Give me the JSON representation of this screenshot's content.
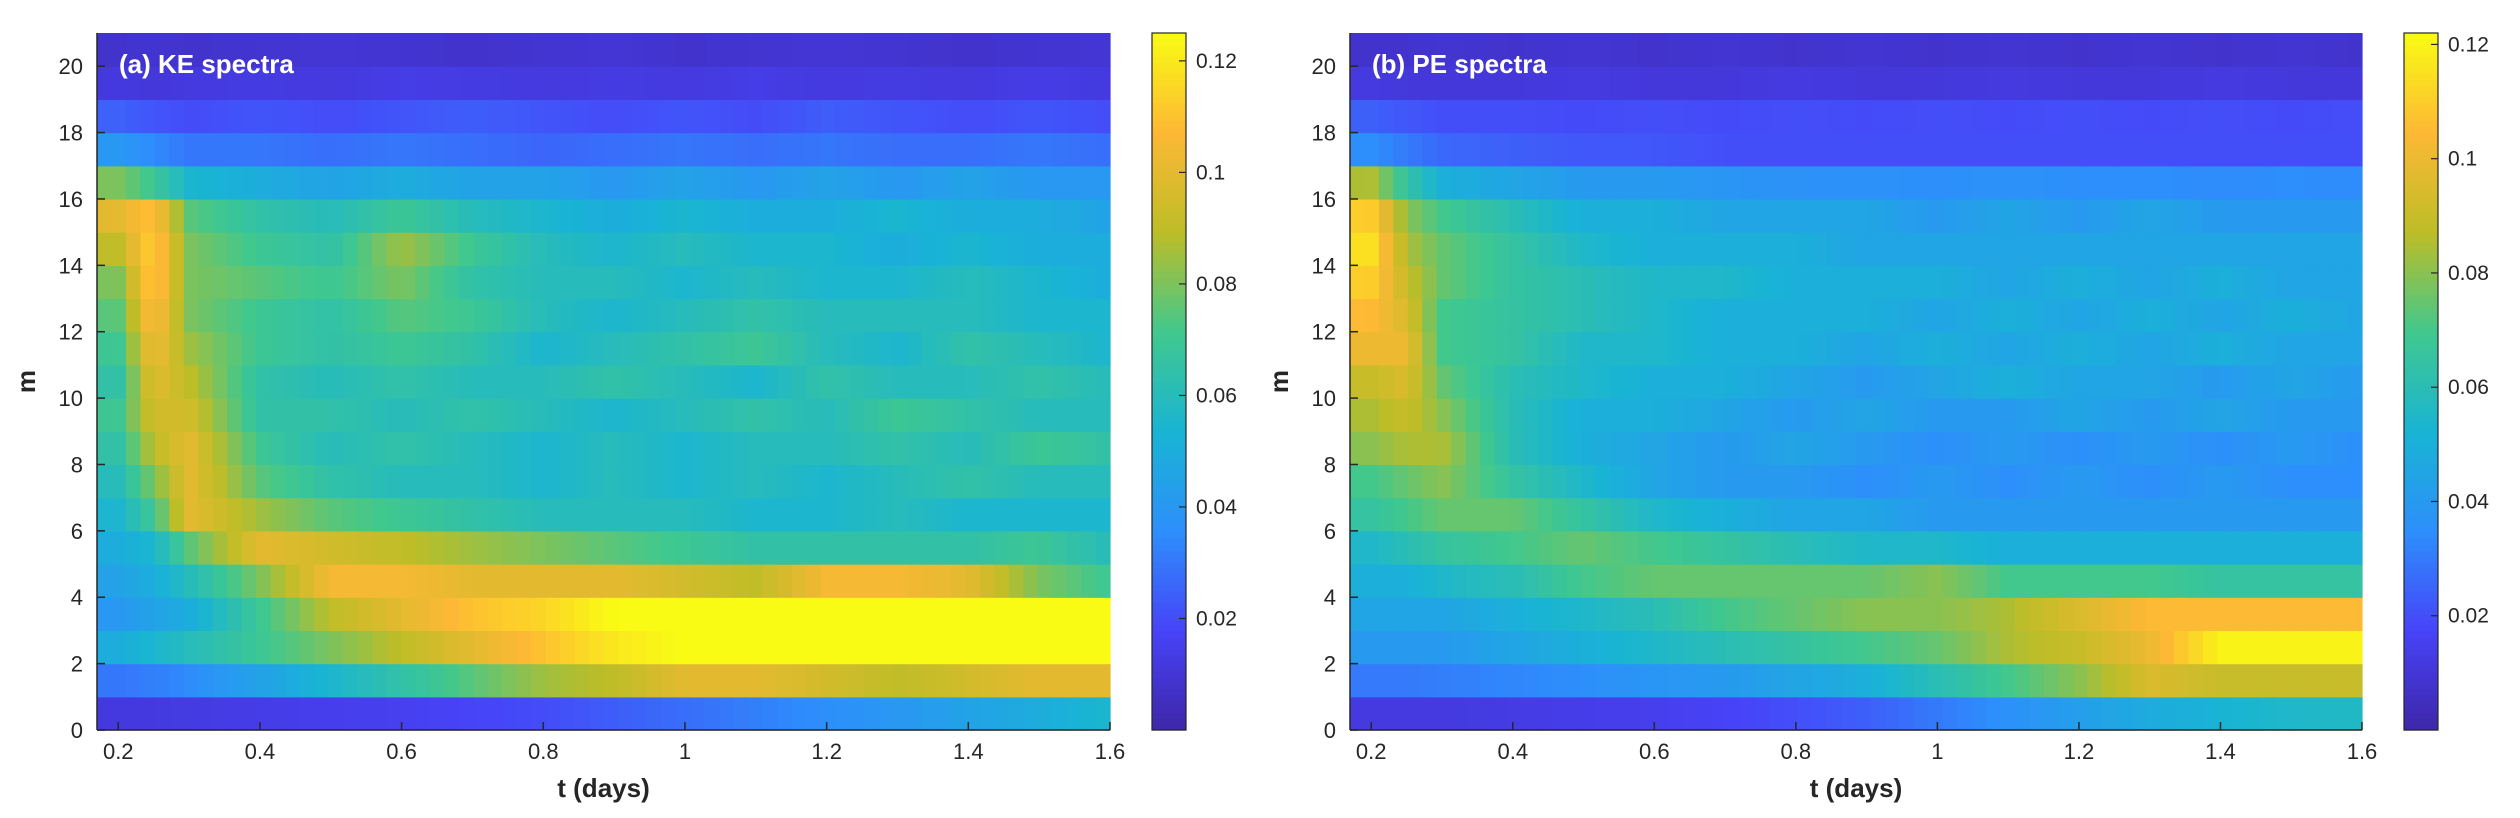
{
  "colormap": [
    "#3e26a8",
    "#4743f8",
    "#2d8ffb",
    "#19b4d4",
    "#40c88e",
    "#bdbd27",
    "#fdb835",
    "#f9fb14"
  ],
  "chart_data": [
    {
      "type": "heatmap",
      "title": "(a) KE spectra",
      "xlabel": "t (days)",
      "ylabel": "m",
      "xlim": [
        0.17,
        1.6
      ],
      "ylim": [
        0,
        21
      ],
      "xticks": [
        0.2,
        0.4,
        0.6,
        0.8,
        1,
        1.2,
        1.4,
        1.6
      ],
      "yticks": [
        0,
        2,
        4,
        6,
        8,
        10,
        12,
        14,
        16,
        18,
        20
      ],
      "m": [
        0,
        1,
        2,
        3,
        4,
        5,
        6,
        7,
        8,
        9,
        10,
        11,
        12,
        13,
        14,
        15,
        16,
        17,
        18,
        19,
        20
      ],
      "t": [
        0.2,
        0.25,
        0.3,
        0.4,
        0.5,
        0.6,
        0.7,
        0.8,
        0.9,
        1.0,
        1.1,
        1.2,
        1.3,
        1.4,
        1.5,
        1.6
      ],
      "values": [
        [
          0.012,
          0.012,
          0.013,
          0.014,
          0.015,
          0.016,
          0.018,
          0.02,
          0.024,
          0.028,
          0.032,
          0.036,
          0.04,
          0.045,
          0.05,
          0.055
        ],
        [
          0.03,
          0.032,
          0.035,
          0.045,
          0.055,
          0.065,
          0.075,
          0.085,
          0.09,
          0.1,
          0.1,
          0.095,
          0.09,
          0.095,
          0.1,
          0.1
        ],
        [
          0.05,
          0.055,
          0.06,
          0.07,
          0.08,
          0.09,
          0.1,
          0.11,
          0.12,
          0.125,
          0.125,
          0.125,
          0.125,
          0.125,
          0.125,
          0.125
        ],
        [
          0.04,
          0.045,
          0.05,
          0.07,
          0.09,
          0.1,
          0.11,
          0.115,
          0.125,
          0.125,
          0.125,
          0.125,
          0.125,
          0.125,
          0.125,
          0.125
        ],
        [
          0.045,
          0.05,
          0.06,
          0.08,
          0.105,
          0.105,
          0.1,
          0.1,
          0.1,
          0.095,
          0.09,
          0.105,
          0.105,
          0.1,
          0.08,
          0.07
        ],
        [
          0.05,
          0.055,
          0.075,
          0.1,
          0.095,
          0.09,
          0.085,
          0.08,
          0.075,
          0.07,
          0.065,
          0.065,
          0.065,
          0.065,
          0.07,
          0.06
        ],
        [
          0.055,
          0.07,
          0.1,
          0.085,
          0.075,
          0.07,
          0.065,
          0.06,
          0.06,
          0.06,
          0.055,
          0.055,
          0.06,
          0.055,
          0.055,
          0.055
        ],
        [
          0.06,
          0.08,
          0.1,
          0.075,
          0.065,
          0.06,
          0.06,
          0.055,
          0.06,
          0.055,
          0.06,
          0.055,
          0.06,
          0.065,
          0.06,
          0.06
        ],
        [
          0.065,
          0.09,
          0.1,
          0.07,
          0.06,
          0.065,
          0.06,
          0.055,
          0.06,
          0.055,
          0.06,
          0.06,
          0.065,
          0.06,
          0.07,
          0.065
        ],
        [
          0.07,
          0.095,
          0.095,
          0.065,
          0.065,
          0.06,
          0.065,
          0.06,
          0.055,
          0.06,
          0.065,
          0.06,
          0.07,
          0.065,
          0.06,
          0.06
        ],
        [
          0.065,
          0.1,
          0.09,
          0.065,
          0.06,
          0.065,
          0.06,
          0.06,
          0.065,
          0.06,
          0.055,
          0.065,
          0.06,
          0.06,
          0.065,
          0.06
        ],
        [
          0.07,
          0.105,
          0.085,
          0.07,
          0.065,
          0.07,
          0.065,
          0.055,
          0.06,
          0.065,
          0.07,
          0.06,
          0.055,
          0.065,
          0.06,
          0.055
        ],
        [
          0.075,
          0.11,
          0.08,
          0.07,
          0.065,
          0.075,
          0.07,
          0.06,
          0.055,
          0.06,
          0.065,
          0.06,
          0.06,
          0.06,
          0.055,
          0.055
        ],
        [
          0.08,
          0.115,
          0.08,
          0.075,
          0.07,
          0.08,
          0.065,
          0.06,
          0.06,
          0.055,
          0.06,
          0.055,
          0.055,
          0.06,
          0.055,
          0.05
        ],
        [
          0.09,
          0.115,
          0.08,
          0.07,
          0.065,
          0.085,
          0.07,
          0.06,
          0.055,
          0.06,
          0.055,
          0.055,
          0.05,
          0.055,
          0.05,
          0.05
        ],
        [
          0.1,
          0.11,
          0.075,
          0.065,
          0.06,
          0.07,
          0.06,
          0.055,
          0.05,
          0.055,
          0.05,
          0.05,
          0.055,
          0.05,
          0.05,
          0.045
        ],
        [
          0.08,
          0.07,
          0.055,
          0.05,
          0.045,
          0.05,
          0.045,
          0.045,
          0.04,
          0.045,
          0.04,
          0.045,
          0.04,
          0.045,
          0.04,
          0.04
        ],
        [
          0.04,
          0.035,
          0.03,
          0.03,
          0.028,
          0.03,
          0.028,
          0.026,
          0.028,
          0.03,
          0.028,
          0.03,
          0.028,
          0.028,
          0.03,
          0.028
        ],
        [
          0.025,
          0.022,
          0.02,
          0.022,
          0.02,
          0.022,
          0.024,
          0.022,
          0.02,
          0.022,
          0.02,
          0.024,
          0.022,
          0.02,
          0.022,
          0.02
        ],
        [
          0.012,
          0.011,
          0.012,
          0.013,
          0.012,
          0.014,
          0.013,
          0.012,
          0.013,
          0.012,
          0.014,
          0.012,
          0.013,
          0.012,
          0.014,
          0.012
        ],
        [
          0.008,
          0.009,
          0.008,
          0.009,
          0.01,
          0.009,
          0.008,
          0.009,
          0.01,
          0.008,
          0.009,
          0.01,
          0.009,
          0.008,
          0.009,
          0.01
        ]
      ],
      "colorbar": {
        "min": 0,
        "max": 0.125,
        "ticks": [
          0.02,
          0.04,
          0.06,
          0.08,
          0.1,
          0.12
        ]
      }
    },
    {
      "type": "heatmap",
      "title": "(b) PE spectra",
      "xlabel": "t (days)",
      "ylabel": "m",
      "xlim": [
        0.17,
        1.6
      ],
      "ylim": [
        0,
        21
      ],
      "xticks": [
        0.2,
        0.4,
        0.6,
        0.8,
        1,
        1.2,
        1.4,
        1.6
      ],
      "yticks": [
        0,
        2,
        4,
        6,
        8,
        10,
        12,
        14,
        16,
        18,
        20
      ],
      "m": [
        0,
        1,
        2,
        3,
        4,
        5,
        6,
        7,
        8,
        9,
        10,
        11,
        12,
        13,
        14,
        15,
        16,
        17,
        18,
        19,
        20
      ],
      "t": [
        0.2,
        0.25,
        0.3,
        0.4,
        0.5,
        0.6,
        0.7,
        0.8,
        0.9,
        1.0,
        1.1,
        1.2,
        1.3,
        1.4,
        1.5,
        1.6
      ],
      "values": [
        [
          0.012,
          0.012,
          0.012,
          0.013,
          0.014,
          0.015,
          0.017,
          0.02,
          0.024,
          0.03,
          0.036,
          0.042,
          0.048,
          0.052,
          0.055,
          0.056
        ],
        [
          0.03,
          0.03,
          0.031,
          0.033,
          0.035,
          0.038,
          0.04,
          0.045,
          0.05,
          0.06,
          0.07,
          0.08,
          0.095,
          0.09,
          0.09,
          0.09
        ],
        [
          0.04,
          0.04,
          0.04,
          0.045,
          0.05,
          0.055,
          0.06,
          0.065,
          0.07,
          0.075,
          0.085,
          0.09,
          0.1,
          0.12,
          0.12,
          0.12
        ],
        [
          0.045,
          0.045,
          0.045,
          0.05,
          0.055,
          0.06,
          0.07,
          0.075,
          0.08,
          0.08,
          0.085,
          0.095,
          0.105,
          0.105,
          0.105,
          0.105
        ],
        [
          0.05,
          0.05,
          0.055,
          0.06,
          0.07,
          0.075,
          0.075,
          0.075,
          0.075,
          0.08,
          0.07,
          0.07,
          0.07,
          0.065,
          0.065,
          0.065
        ],
        [
          0.055,
          0.06,
          0.065,
          0.07,
          0.075,
          0.07,
          0.065,
          0.06,
          0.055,
          0.055,
          0.05,
          0.05,
          0.05,
          0.05,
          0.05,
          0.05
        ],
        [
          0.065,
          0.07,
          0.075,
          0.075,
          0.065,
          0.055,
          0.05,
          0.045,
          0.045,
          0.04,
          0.04,
          0.04,
          0.04,
          0.04,
          0.04,
          0.04
        ],
        [
          0.07,
          0.075,
          0.08,
          0.065,
          0.055,
          0.045,
          0.04,
          0.04,
          0.035,
          0.04,
          0.035,
          0.04,
          0.035,
          0.04,
          0.035,
          0.035
        ],
        [
          0.08,
          0.085,
          0.085,
          0.06,
          0.05,
          0.045,
          0.04,
          0.045,
          0.04,
          0.035,
          0.04,
          0.035,
          0.04,
          0.035,
          0.04,
          0.035
        ],
        [
          0.085,
          0.09,
          0.08,
          0.06,
          0.05,
          0.05,
          0.045,
          0.04,
          0.045,
          0.04,
          0.04,
          0.045,
          0.04,
          0.045,
          0.04,
          0.04
        ],
        [
          0.09,
          0.095,
          0.075,
          0.06,
          0.055,
          0.05,
          0.05,
          0.045,
          0.04,
          0.045,
          0.05,
          0.045,
          0.045,
          0.04,
          0.045,
          0.04
        ],
        [
          0.1,
          0.1,
          0.07,
          0.065,
          0.055,
          0.055,
          0.05,
          0.05,
          0.045,
          0.05,
          0.045,
          0.05,
          0.045,
          0.05,
          0.045,
          0.045
        ],
        [
          0.105,
          0.095,
          0.07,
          0.065,
          0.06,
          0.055,
          0.05,
          0.05,
          0.05,
          0.045,
          0.05,
          0.045,
          0.05,
          0.045,
          0.05,
          0.045
        ],
        [
          0.11,
          0.09,
          0.075,
          0.065,
          0.06,
          0.055,
          0.055,
          0.05,
          0.05,
          0.05,
          0.045,
          0.05,
          0.045,
          0.05,
          0.045,
          0.045
        ],
        [
          0.115,
          0.085,
          0.075,
          0.065,
          0.055,
          0.05,
          0.05,
          0.05,
          0.045,
          0.045,
          0.045,
          0.045,
          0.045,
          0.045,
          0.045,
          0.045
        ],
        [
          0.11,
          0.08,
          0.07,
          0.06,
          0.05,
          0.05,
          0.045,
          0.045,
          0.045,
          0.04,
          0.045,
          0.04,
          0.045,
          0.04,
          0.04,
          0.04
        ],
        [
          0.085,
          0.065,
          0.05,
          0.045,
          0.04,
          0.04,
          0.038,
          0.036,
          0.036,
          0.035,
          0.036,
          0.035,
          0.035,
          0.034,
          0.035,
          0.034
        ],
        [
          0.035,
          0.03,
          0.026,
          0.024,
          0.022,
          0.022,
          0.02,
          0.02,
          0.02,
          0.02,
          0.02,
          0.02,
          0.02,
          0.02,
          0.02,
          0.02
        ],
        [
          0.024,
          0.022,
          0.02,
          0.02,
          0.019,
          0.02,
          0.019,
          0.02,
          0.019,
          0.02,
          0.019,
          0.02,
          0.019,
          0.02,
          0.019,
          0.02
        ],
        [
          0.012,
          0.011,
          0.011,
          0.011,
          0.012,
          0.011,
          0.011,
          0.012,
          0.011,
          0.011,
          0.012,
          0.011,
          0.011,
          0.012,
          0.011,
          0.011
        ],
        [
          0.008,
          0.008,
          0.009,
          0.008,
          0.009,
          0.008,
          0.009,
          0.008,
          0.009,
          0.008,
          0.009,
          0.008,
          0.009,
          0.008,
          0.009,
          0.008
        ]
      ],
      "colorbar": {
        "min": 0,
        "max": 0.122,
        "ticks": [
          0.02,
          0.04,
          0.06,
          0.08,
          0.1,
          0.12
        ]
      }
    }
  ]
}
